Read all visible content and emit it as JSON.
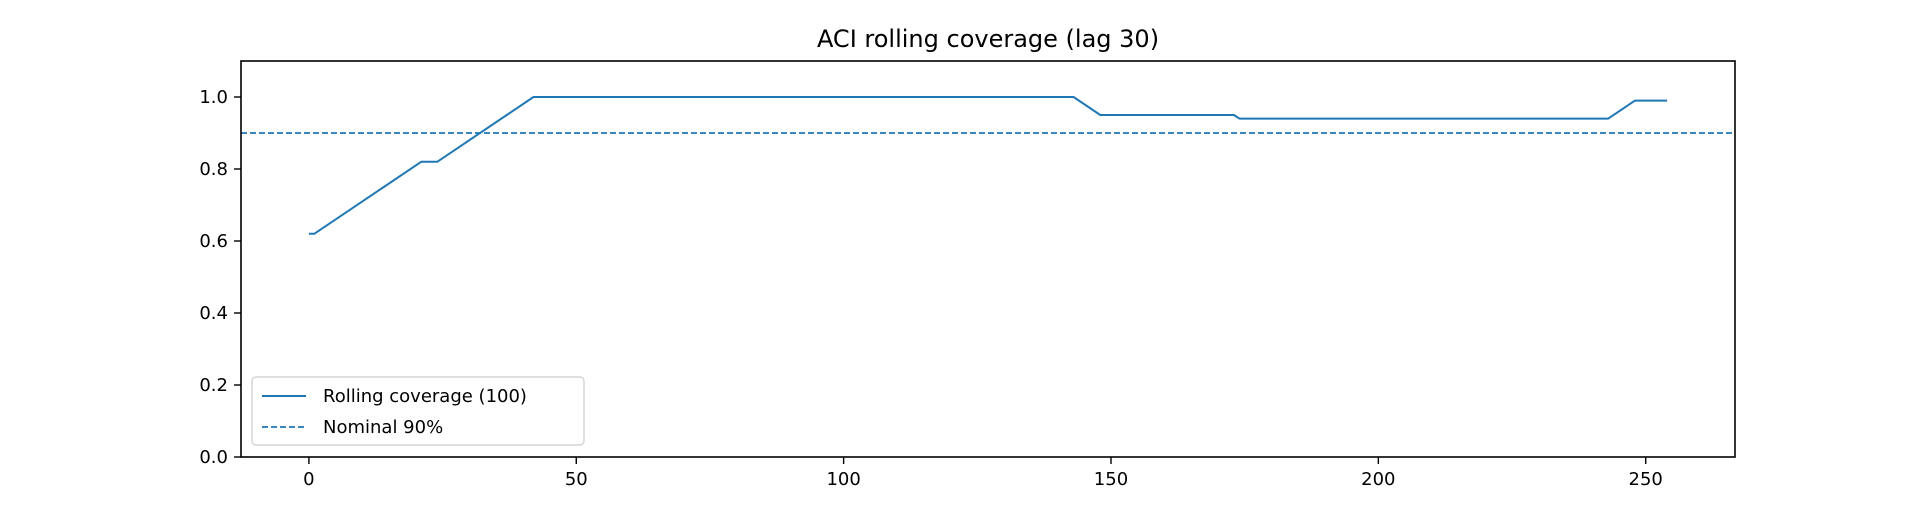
{
  "chart_data": {
    "type": "line",
    "title": "ACI rolling coverage (lag 30)",
    "xlabel": "",
    "ylabel": "",
    "xlim": [
      -12.7,
      266.7
    ],
    "ylim": [
      0.0,
      1.1
    ],
    "xticks": [
      0,
      50,
      100,
      150,
      200,
      250
    ],
    "yticks": [
      0.0,
      0.2,
      0.4,
      0.6,
      0.8,
      1.0
    ],
    "xtick_labels": [
      "0",
      "50",
      "100",
      "150",
      "200",
      "250"
    ],
    "ytick_labels": [
      "0.0",
      "0.2",
      "0.4",
      "0.6",
      "0.8",
      "1.0"
    ],
    "grid": false,
    "legend_position": "lower-left",
    "series": [
      {
        "name": "Rolling coverage (100)",
        "style": "solid",
        "color": "#1f77b4",
        "x": [
          0,
          1,
          21,
          24,
          42,
          143,
          148,
          173,
          174,
          243,
          248,
          254
        ],
        "y": [
          0.62,
          0.62,
          0.82,
          0.82,
          1.0,
          1.0,
          0.95,
          0.95,
          0.94,
          0.94,
          0.99,
          0.99
        ]
      },
      {
        "name": "Nominal 90%",
        "style": "dashed",
        "color": "#1f77b4",
        "hline": 0.9
      }
    ]
  }
}
